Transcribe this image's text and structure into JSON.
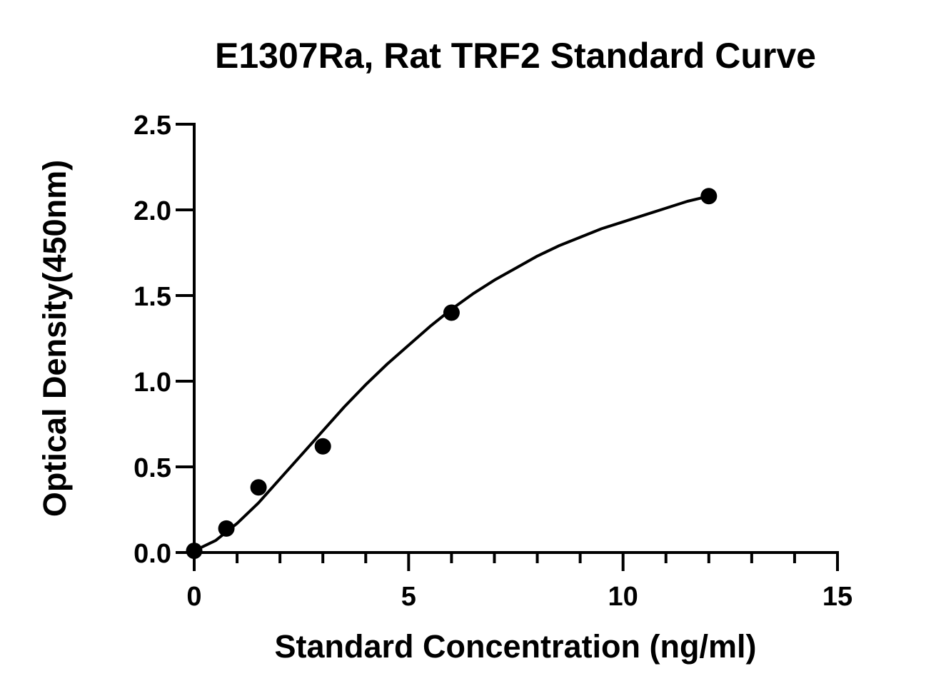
{
  "chart_data": {
    "type": "scatter",
    "title": "E1307Ra, Rat TRF2 Standard Curve",
    "xlabel": "Standard Concentration (ng/ml)",
    "ylabel": "Optical Density(450nm)",
    "xlim": [
      0,
      15
    ],
    "ylim": [
      0,
      2.5
    ],
    "x_ticks": [
      0,
      5,
      10,
      15
    ],
    "x_tick_labels": [
      "0",
      "5",
      "10",
      "15"
    ],
    "y_ticks": [
      0,
      0.5,
      1.0,
      1.5,
      2.0,
      2.5
    ],
    "y_tick_labels": [
      "0.0",
      "0.5",
      "1.0",
      "1.5",
      "2.0",
      "2.5"
    ],
    "grid": false,
    "series": [
      {
        "x": [
          0,
          0.75,
          1.5,
          3,
          6,
          12
        ],
        "y": [
          0.01,
          0.14,
          0.38,
          0.62,
          1.4,
          2.08
        ],
        "color": "#000000",
        "fit_curve": [
          [
            0,
            0.01
          ],
          [
            0.5,
            0.07
          ],
          [
            1,
            0.17
          ],
          [
            1.5,
            0.29
          ],
          [
            2,
            0.43
          ],
          [
            2.5,
            0.57
          ],
          [
            3,
            0.71
          ],
          [
            3.5,
            0.85
          ],
          [
            4,
            0.98
          ],
          [
            4.5,
            1.1
          ],
          [
            5,
            1.21
          ],
          [
            5.5,
            1.32
          ],
          [
            6,
            1.42
          ],
          [
            6.5,
            1.51
          ],
          [
            7,
            1.59
          ],
          [
            7.5,
            1.66
          ],
          [
            8,
            1.73
          ],
          [
            8.5,
            1.79
          ],
          [
            9,
            1.84
          ],
          [
            9.5,
            1.89
          ],
          [
            10,
            1.93
          ],
          [
            10.5,
            1.97
          ],
          [
            11,
            2.01
          ],
          [
            11.5,
            2.05
          ],
          [
            12,
            2.08
          ]
        ]
      }
    ]
  }
}
